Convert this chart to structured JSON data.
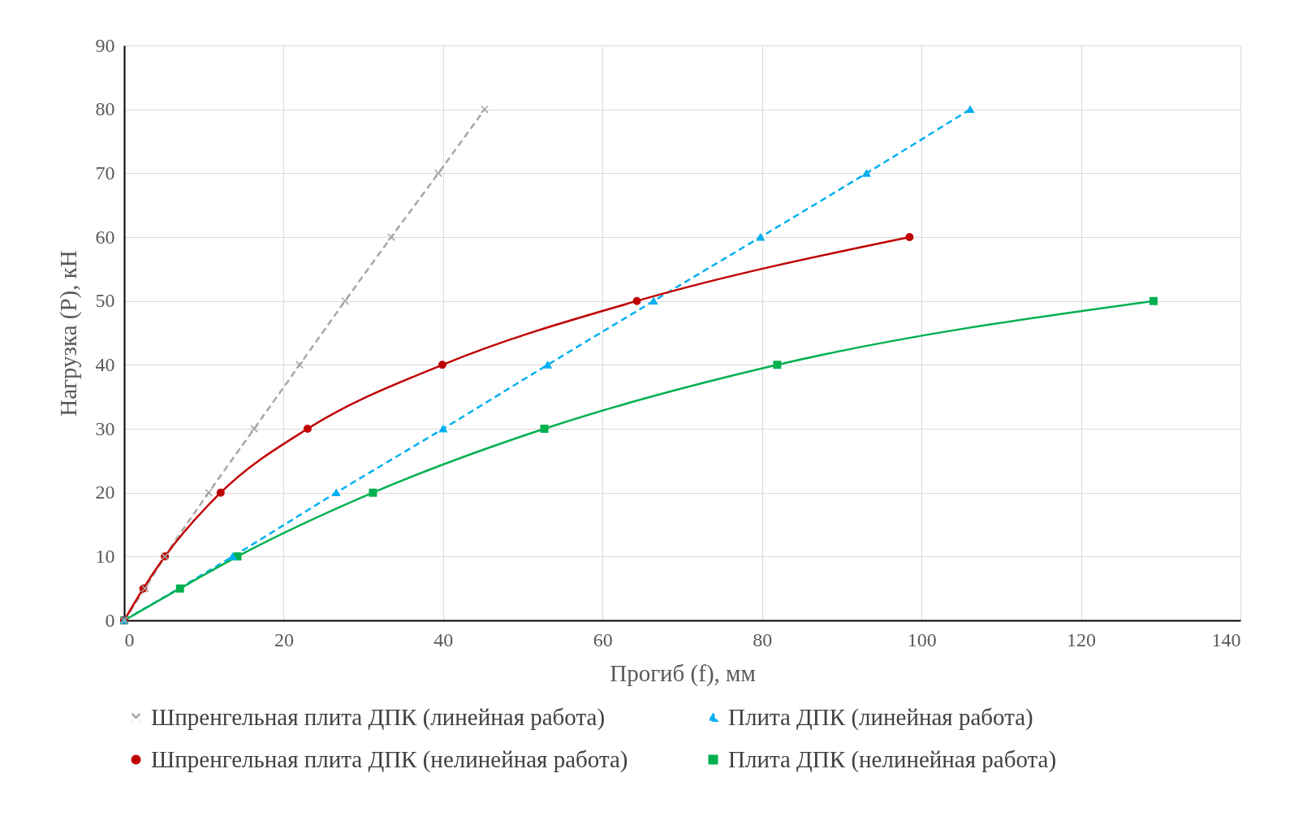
{
  "chart_data": {
    "type": "line",
    "xlabel": "Прогиб (f), мм",
    "ylabel": "Нагрузка (P), кН",
    "xlim": [
      0,
      140
    ],
    "xticks": [
      0,
      20,
      40,
      60,
      80,
      100,
      120,
      140
    ],
    "ylim": [
      0,
      90
    ],
    "yticks": [
      0,
      10,
      20,
      30,
      40,
      50,
      60,
      70,
      80,
      90
    ],
    "grid": true,
    "legend": "bottom",
    "series": [
      {
        "name": "Шпренгельная плита ДПК (линейная работа)",
        "color": "#a6a6a6",
        "marker": "cross",
        "line_style": "dashed",
        "x": [
          0,
          2.6,
          5.1,
          10.6,
          16.3,
          22.0,
          27.7,
          33.5,
          39.4,
          45.2
        ],
        "values": [
          0,
          5,
          10,
          20,
          30,
          40,
          50,
          60,
          70,
          80
        ]
      },
      {
        "name": "Плита ДПК (линейная работа)",
        "color": "#00b0f0",
        "marker": "triangle",
        "line_style": "dashed",
        "x": [
          0,
          13.6,
          26.6,
          40.0,
          53.1,
          66.4,
          79.8,
          93.1,
          106.1
        ],
        "values": [
          0,
          10,
          20,
          30,
          40,
          50,
          60,
          70,
          80
        ]
      },
      {
        "name": "Шпренгельная плита ДПК (нелинейная работа)",
        "color": "#c00000",
        "marker": "circle",
        "line_style": "solid",
        "x": [
          0,
          2.4,
          5.1,
          12.1,
          23.0,
          39.9,
          64.3,
          98.5
        ],
        "values": [
          0,
          5,
          10,
          20,
          30,
          40,
          50,
          60
        ]
      },
      {
        "name": "Плита ДПК (нелинейная работа)",
        "color": "#00b050",
        "marker": "square",
        "line_style": "solid",
        "x": [
          0,
          7.0,
          14.2,
          31.2,
          52.7,
          81.9,
          129.1
        ],
        "values": [
          0,
          5,
          10,
          20,
          30,
          40,
          50
        ]
      }
    ]
  }
}
